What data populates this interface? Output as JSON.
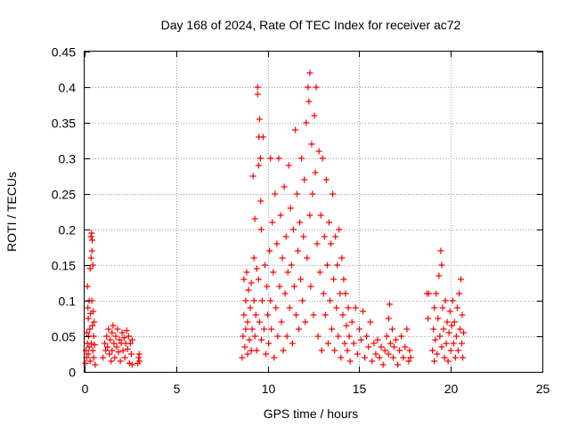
{
  "chart_data": {
    "type": "scatter",
    "title": "Day 168 of 2024, Rate Of TEC Index for receiver ac72",
    "xlabel": "GPS time / hours",
    "ylabel": "ROTI / TECUs",
    "xlim": [
      0,
      25
    ],
    "ylim": [
      0,
      0.45
    ],
    "xticks": [
      0,
      5,
      10,
      15,
      20,
      25
    ],
    "xtick_labels": [
      "0",
      "5",
      "10",
      "15",
      "20",
      "25"
    ],
    "yticks": [
      0,
      0.05,
      0.1,
      0.15,
      0.2,
      0.25,
      0.3,
      0.35,
      0.4,
      0.45
    ],
    "ytick_labels": [
      "0",
      "0.05",
      "0.1",
      "0.15",
      "0.2",
      "0.25",
      "0.3",
      "0.35",
      "0.4",
      "0.45"
    ],
    "grid": true,
    "marker": "+",
    "marker_color": "#ff0000",
    "series": [
      {
        "name": "ROTI",
        "points": [
          [
            0.05,
            0.012
          ],
          [
            0.08,
            0.03
          ],
          [
            0.1,
            0.02
          ],
          [
            0.12,
            0.055
          ],
          [
            0.15,
            0.04
          ],
          [
            0.15,
            0.12
          ],
          [
            0.18,
            0.09
          ],
          [
            0.2,
            0.075
          ],
          [
            0.2,
            0.025
          ],
          [
            0.22,
            0.05
          ],
          [
            0.25,
            0.035
          ],
          [
            0.25,
            0.1
          ],
          [
            0.28,
            0.06
          ],
          [
            0.3,
            0.015
          ],
          [
            0.3,
            0.145
          ],
          [
            0.32,
            0.082
          ],
          [
            0.35,
            0.16
          ],
          [
            0.35,
            0.19
          ],
          [
            0.37,
            0.04
          ],
          [
            0.38,
            0.195
          ],
          [
            0.4,
            0.17
          ],
          [
            0.4,
            0.1
          ],
          [
            0.42,
            0.065
          ],
          [
            0.42,
            0.185
          ],
          [
            0.45,
            0.15
          ],
          [
            0.45,
            0.03
          ],
          [
            0.47,
            0.085
          ],
          [
            0.5,
            0.02
          ],
          [
            0.5,
            0.05
          ],
          [
            0.52,
            0.07
          ],
          [
            0.55,
            0.038
          ],
          [
            0.58,
            0.01
          ],
          [
            1.0,
            0.02
          ],
          [
            1.1,
            0.04
          ],
          [
            1.15,
            0.03
          ],
          [
            1.2,
            0.05
          ],
          [
            1.25,
            0.035
          ],
          [
            1.3,
            0.06
          ],
          [
            1.35,
            0.025
          ],
          [
            1.4,
            0.045
          ],
          [
            1.45,
            0.015
          ],
          [
            1.5,
            0.055
          ],
          [
            1.5,
            0.03
          ],
          [
            1.55,
            0.065
          ],
          [
            1.6,
            0.04
          ],
          [
            1.65,
            0.02
          ],
          [
            1.7,
            0.05
          ],
          [
            1.75,
            0.035
          ],
          [
            1.8,
            0.06
          ],
          [
            1.85,
            0.028
          ],
          [
            1.9,
            0.045
          ],
          [
            1.95,
            0.015
          ],
          [
            2.0,
            0.04
          ],
          [
            2.05,
            0.055
          ],
          [
            2.1,
            0.03
          ],
          [
            2.15,
            0.048
          ],
          [
            2.2,
            0.02
          ],
          [
            2.25,
            0.04
          ],
          [
            2.3,
            0.058
          ],
          [
            2.35,
            0.032
          ],
          [
            2.4,
            0.05
          ],
          [
            2.45,
            0.012
          ],
          [
            2.5,
            0.04
          ],
          [
            2.55,
            0.025
          ],
          [
            2.6,
            0.045
          ],
          [
            2.6,
            0.01
          ],
          [
            2.9,
            0.012
          ],
          [
            2.95,
            0.02
          ],
          [
            2.98,
            0.025
          ],
          [
            3.0,
            0.015
          ],
          [
            8.6,
            0.02
          ],
          [
            8.65,
            0.05
          ],
          [
            8.7,
            0.08
          ],
          [
            8.7,
            0.13
          ],
          [
            8.75,
            0.035
          ],
          [
            8.8,
            0.1
          ],
          [
            8.8,
            0.06
          ],
          [
            8.85,
            0.14
          ],
          [
            8.9,
            0.025
          ],
          [
            8.9,
            0.07
          ],
          [
            8.95,
            0.115
          ],
          [
            9.0,
            0.045
          ],
          [
            9.05,
            0.09
          ],
          [
            9.1,
            0.125
          ],
          [
            9.1,
            0.03
          ],
          [
            9.15,
            0.06
          ],
          [
            9.2,
            0.275
          ],
          [
            9.25,
            0.1
          ],
          [
            9.25,
            0.16
          ],
          [
            9.3,
            0.215
          ],
          [
            9.3,
            0.05
          ],
          [
            9.35,
            0.08
          ],
          [
            9.4,
            0.03
          ],
          [
            9.4,
            0.145
          ],
          [
            9.45,
            0.4
          ],
          [
            9.45,
            0.39
          ],
          [
            9.5,
            0.29
          ],
          [
            9.5,
            0.13
          ],
          [
            9.52,
            0.33
          ],
          [
            9.55,
            0.355
          ],
          [
            9.55,
            0.07
          ],
          [
            9.6,
            0.3
          ],
          [
            9.62,
            0.24
          ],
          [
            9.65,
            0.2
          ],
          [
            9.65,
            0.045
          ],
          [
            9.7,
            0.1
          ],
          [
            9.75,
            0.33
          ],
          [
            9.8,
            0.06
          ],
          [
            9.85,
            0.15
          ],
          [
            9.9,
            0.025
          ],
          [
            9.95,
            0.12
          ],
          [
            10.0,
            0.08
          ],
          [
            10.05,
            0.04
          ],
          [
            10.1,
            0.17
          ],
          [
            10.15,
            0.3
          ],
          [
            10.15,
            0.1
          ],
          [
            10.2,
            0.06
          ],
          [
            10.25,
            0.21
          ],
          [
            10.3,
            0.14
          ],
          [
            10.35,
            0.02
          ],
          [
            10.4,
            0.25
          ],
          [
            10.45,
            0.09
          ],
          [
            10.5,
            0.18
          ],
          [
            10.55,
            0.05
          ],
          [
            10.6,
            0.3
          ],
          [
            10.65,
            0.12
          ],
          [
            10.7,
            0.22
          ],
          [
            10.75,
            0.07
          ],
          [
            10.8,
            0.16
          ],
          [
            10.85,
            0.03
          ],
          [
            10.9,
            0.26
          ],
          [
            10.95,
            0.11
          ],
          [
            11.0,
            0.19
          ],
          [
            11.05,
            0.05
          ],
          [
            11.1,
            0.14
          ],
          [
            11.15,
            0.29
          ],
          [
            11.2,
            0.09
          ],
          [
            11.25,
            0.23
          ],
          [
            11.3,
            0.15
          ],
          [
            11.35,
            0.04
          ],
          [
            11.4,
            0.2
          ],
          [
            11.45,
            0.12
          ],
          [
            11.5,
            0.34
          ],
          [
            11.55,
            0.08
          ],
          [
            11.6,
            0.25
          ],
          [
            11.65,
            0.17
          ],
          [
            11.7,
            0.06
          ],
          [
            11.75,
            0.21
          ],
          [
            11.8,
            0.13
          ],
          [
            11.85,
            0.3
          ],
          [
            11.9,
            0.1
          ],
          [
            11.95,
            0.19
          ],
          [
            12.0,
            0.27
          ],
          [
            12.05,
            0.07
          ],
          [
            12.1,
            0.35
          ],
          [
            12.15,
            0.16
          ],
          [
            12.2,
            0.4
          ],
          [
            12.25,
            0.38
          ],
          [
            12.3,
            0.22
          ],
          [
            12.3,
            0.42
          ],
          [
            12.35,
            0.12
          ],
          [
            12.4,
            0.32
          ],
          [
            12.45,
            0.25
          ],
          [
            12.5,
            0.08
          ],
          [
            12.55,
            0.36
          ],
          [
            12.6,
            0.28
          ],
          [
            12.65,
            0.4
          ],
          [
            12.7,
            0.18
          ],
          [
            12.75,
            0.05
          ],
          [
            12.8,
            0.31
          ],
          [
            12.85,
            0.14
          ],
          [
            12.9,
            0.22
          ],
          [
            12.95,
            0.03
          ],
          [
            13.0,
            0.3
          ],
          [
            13.05,
            0.11
          ],
          [
            13.1,
            0.19
          ],
          [
            13.15,
            0.08
          ],
          [
            13.2,
            0.27
          ],
          [
            13.25,
            0.15
          ],
          [
            13.3,
            0.04
          ],
          [
            13.35,
            0.21
          ],
          [
            13.4,
            0.1
          ],
          [
            13.45,
            0.18
          ],
          [
            13.5,
            0.06
          ],
          [
            13.55,
            0.25
          ],
          [
            13.6,
            0.13
          ],
          [
            13.65,
            0.03
          ],
          [
            13.7,
            0.19
          ],
          [
            13.75,
            0.09
          ],
          [
            13.8,
            0.15
          ],
          [
            13.85,
            0.05
          ],
          [
            13.9,
            0.2
          ],
          [
            13.95,
            0.11
          ],
          [
            14.0,
            0.02
          ],
          [
            14.05,
            0.16
          ],
          [
            14.1,
            0.08
          ],
          [
            14.15,
            0.13
          ],
          [
            14.2,
            0.04
          ],
          [
            14.25,
            0.11
          ],
          [
            14.3,
            0.065
          ],
          [
            14.35,
            0.03
          ],
          [
            14.4,
            0.09
          ],
          [
            14.45,
            0.05
          ],
          [
            14.5,
            0.015
          ],
          [
            14.6,
            0.07
          ],
          [
            14.7,
            0.04
          ],
          [
            14.8,
            0.09
          ],
          [
            14.9,
            0.025
          ],
          [
            15.0,
            0.06
          ],
          [
            15.1,
            0.045
          ],
          [
            15.2,
            0.085
          ],
          [
            15.3,
            0.02
          ],
          [
            15.4,
            0.05
          ],
          [
            15.5,
            0.035
          ],
          [
            15.6,
            0.07
          ],
          [
            15.7,
            0.015
          ],
          [
            15.8,
            0.04
          ],
          [
            15.9,
            0.025
          ],
          [
            16.0,
            0.045
          ],
          [
            16.1,
            0.02
          ],
          [
            16.2,
            0.035
          ],
          [
            16.3,
            0.01
          ],
          [
            16.4,
            0.03
          ],
          [
            16.5,
            0.05
          ],
          [
            16.6,
            0.025
          ],
          [
            16.6,
            0.075
          ],
          [
            16.65,
            0.095
          ],
          [
            16.7,
            0.04
          ],
          [
            16.8,
            0.06
          ],
          [
            16.85,
            0.02
          ],
          [
            16.9,
            0.035
          ],
          [
            17.0,
            0.045
          ],
          [
            17.1,
            0.01
          ],
          [
            17.2,
            0.03
          ],
          [
            17.3,
            0.05
          ],
          [
            17.4,
            0.02
          ],
          [
            17.5,
            0.035
          ],
          [
            17.6,
            0.06
          ],
          [
            17.7,
            0.015
          ],
          [
            17.75,
            0.03
          ],
          [
            17.8,
            0.02
          ],
          [
            18.7,
            0.11
          ],
          [
            18.75,
            0.075
          ],
          [
            18.8,
            0.11
          ],
          [
            19.0,
            0.03
          ],
          [
            19.05,
            0.06
          ],
          [
            19.1,
            0.09
          ],
          [
            19.1,
            0.015
          ],
          [
            19.15,
            0.045
          ],
          [
            19.2,
            0.11
          ],
          [
            19.25,
            0.025
          ],
          [
            19.3,
            0.075
          ],
          [
            19.35,
            0.135
          ],
          [
            19.4,
            0.05
          ],
          [
            19.45,
            0.17
          ],
          [
            19.5,
            0.035
          ],
          [
            19.5,
            0.15
          ],
          [
            19.55,
            0.09
          ],
          [
            19.6,
            0.06
          ],
          [
            19.65,
            0.02
          ],
          [
            19.7,
            0.1
          ],
          [
            19.75,
            0.04
          ],
          [
            19.8,
            0.07
          ],
          [
            19.85,
            0.015
          ],
          [
            19.9,
            0.055
          ],
          [
            19.95,
            0.085
          ],
          [
            20.0,
            0.03
          ],
          [
            20.05,
            0.065
          ],
          [
            20.1,
            0.1
          ],
          [
            20.15,
            0.04
          ],
          [
            20.2,
            0.07
          ],
          [
            20.25,
            0.02
          ],
          [
            20.3,
            0.05
          ],
          [
            20.35,
            0.09
          ],
          [
            20.4,
            0.03
          ],
          [
            20.45,
            0.11
          ],
          [
            20.5,
            0.06
          ],
          [
            20.55,
            0.13
          ],
          [
            20.6,
            0.04
          ],
          [
            20.62,
            0.08
          ],
          [
            20.65,
            0.02
          ],
          [
            20.7,
            0.055
          ]
        ]
      }
    ]
  }
}
